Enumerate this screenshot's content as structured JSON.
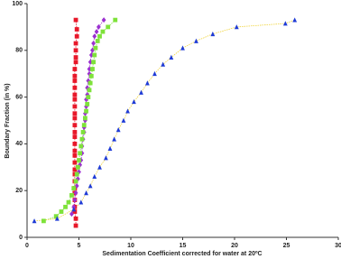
{
  "chart_data": {
    "type": "scatter",
    "xlabel": "Sedimentation Coefficient corrected for water at 20ºC",
    "ylabel": "Boundary Fraction (in %)",
    "xlim": [
      0,
      30
    ],
    "ylim": [
      0,
      100
    ],
    "xticks": [
      0,
      5,
      10,
      15,
      20,
      25,
      30
    ],
    "yticks": [
      0,
      20,
      40,
      60,
      80,
      100
    ],
    "series": [
      {
        "color": "#e8182a",
        "line_color": "#e8182a",
        "marker": "square",
        "x": [
          4.7,
          4.7,
          4.6,
          4.6,
          4.6,
          4.6,
          4.6,
          4.6,
          4.6,
          4.6,
          4.6,
          4.6,
          4.6,
          4.6,
          4.6,
          4.6,
          4.6,
          4.6,
          4.6,
          4.6,
          4.6,
          4.6,
          4.6,
          4.6,
          4.6,
          4.6,
          4.7,
          4.7,
          4.7,
          4.7,
          4.8,
          4.8,
          4.7
        ],
        "values": [
          5,
          8,
          11,
          13,
          16,
          19,
          21,
          24,
          27,
          29,
          32,
          35,
          37,
          40,
          43,
          45,
          48,
          51,
          53,
          56,
          59,
          61,
          64,
          67,
          69,
          72,
          75,
          77,
          80,
          83,
          86,
          89,
          93
        ]
      },
      {
        "color": "#9b30d0",
        "line_color": "#9b30d0",
        "marker": "diamond",
        "x": [
          4.3,
          4.5,
          4.6,
          4.7,
          4.8,
          4.9,
          5.0,
          5.1,
          5.2,
          5.3,
          5.3,
          5.4,
          5.5,
          5.5,
          5.6,
          5.6,
          5.7,
          5.7,
          5.8,
          5.8,
          5.9,
          6.0,
          6.0,
          6.1,
          6.2,
          6.3,
          6.4,
          6.5,
          6.7,
          6.9,
          7.4
        ],
        "values": [
          10,
          13,
          16,
          19,
          22,
          25,
          28,
          31,
          33,
          36,
          39,
          42,
          45,
          47,
          50,
          53,
          56,
          59,
          61,
          64,
          67,
          70,
          72,
          75,
          78,
          80,
          83,
          86,
          88,
          90,
          93
        ]
      },
      {
        "color": "#7ee23a",
        "line_color": "#7ee23a",
        "marker": "square",
        "x": [
          1.6,
          2.8,
          3.3,
          3.7,
          4.0,
          4.3,
          4.5,
          4.7,
          4.8,
          4.9,
          5.0,
          5.1,
          5.2,
          5.3,
          5.4,
          5.5,
          5.6,
          5.7,
          5.8,
          5.9,
          6.0,
          6.1,
          6.2,
          6.3,
          6.4,
          6.5,
          6.6,
          6.8,
          7.0,
          7.3,
          7.8,
          8.5
        ],
        "values": [
          7,
          9,
          11,
          13,
          15,
          18,
          21,
          24,
          27,
          30,
          33,
          36,
          39,
          42,
          45,
          48,
          51,
          54,
          57,
          60,
          63,
          66,
          69,
          72,
          75,
          78,
          81,
          84,
          86,
          88,
          90,
          93
        ]
      },
      {
        "color": "#1f3bd6",
        "line_color": "#f0d43a",
        "marker": "triangle",
        "x": [
          0.7,
          2.9,
          4.5,
          5.2,
          5.7,
          6.1,
          6.5,
          7.0,
          7.6,
          8.0,
          8.4,
          8.8,
          9.3,
          9.7,
          10.3,
          11.0,
          11.6,
          12.3,
          13.1,
          13.9,
          15.0,
          16.3,
          17.9,
          20.2,
          24.9,
          25.8
        ],
        "values": [
          7,
          8,
          12,
          15,
          19,
          22,
          26,
          30,
          34,
          38,
          42,
          46,
          50,
          54,
          58,
          62,
          66,
          70,
          74,
          77,
          81,
          84,
          87,
          90,
          91.5,
          93
        ]
      }
    ]
  }
}
